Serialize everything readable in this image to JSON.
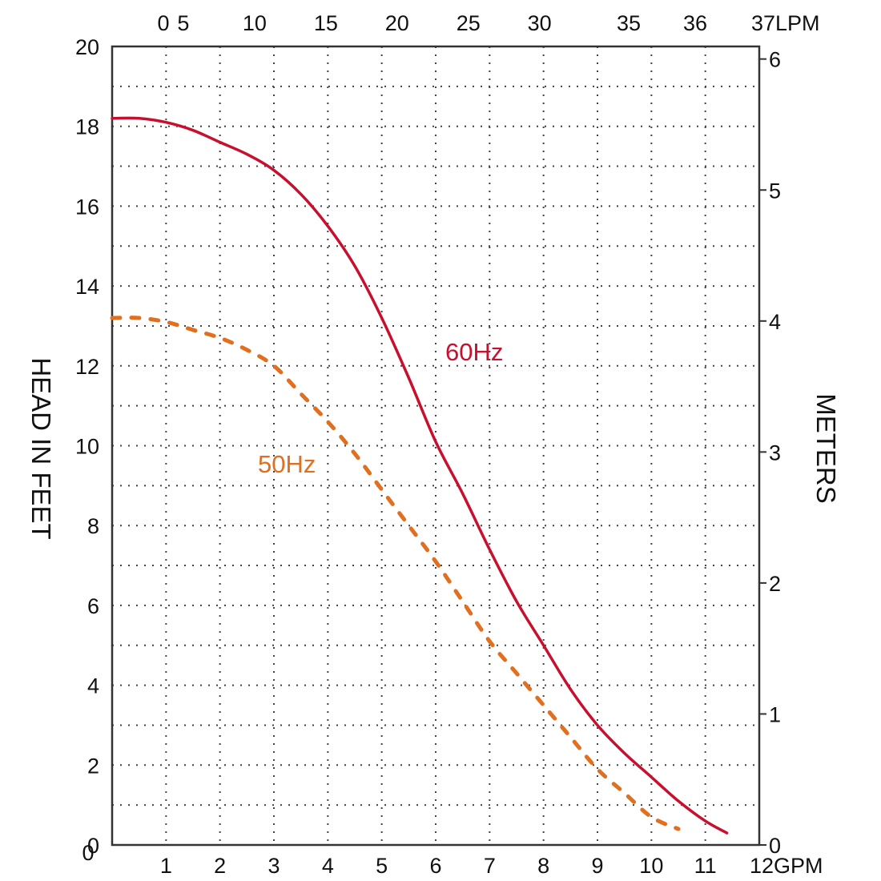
{
  "chart_data": {
    "type": "line",
    "left_axis": {
      "label": "HEAD IN FEET",
      "ticks": [
        "0",
        "2",
        "4",
        "6",
        "8",
        "10",
        "12",
        "14",
        "16",
        "18",
        "20"
      ],
      "range": [
        0,
        20
      ]
    },
    "right_axis": {
      "label": "METERS",
      "ticks": [
        "0",
        "1",
        "2",
        "3",
        "4",
        "5",
        "6"
      ],
      "range": [
        0,
        6
      ]
    },
    "bottom_axis": {
      "unit": "GPM",
      "ticks": [
        "1",
        "2",
        "3",
        "4",
        "5",
        "6",
        "7",
        "8",
        "9",
        "10",
        "11",
        "12GPM"
      ],
      "range": [
        0,
        12
      ]
    },
    "top_axis": {
      "unit": "LPM",
      "ticks": [
        "0",
        "5",
        "10",
        "15",
        "20",
        "25",
        "30",
        "35",
        "36",
        "37LPM"
      ]
    },
    "grid": true,
    "series": [
      {
        "name": "60Hz",
        "style": "solid",
        "color": "#c8102e",
        "x": [
          0,
          0.5,
          1,
          1.5,
          2,
          2.5,
          3,
          3.5,
          4,
          4.5,
          5,
          5.5,
          6,
          6.5,
          7,
          7.5,
          8,
          8.5,
          9,
          9.5,
          10,
          10.5,
          11,
          11.4
        ],
        "y": [
          18.2,
          18.2,
          18.1,
          17.9,
          17.6,
          17.3,
          16.9,
          16.3,
          15.5,
          14.5,
          13.2,
          11.7,
          10.1,
          8.8,
          7.4,
          6.1,
          5.0,
          3.9,
          3.0,
          2.3,
          1.7,
          1.1,
          0.6,
          0.3
        ]
      },
      {
        "name": "50Hz",
        "style": "dashed",
        "color": "#e07020",
        "x": [
          0,
          0.5,
          1,
          1.5,
          2,
          2.5,
          3,
          3.5,
          4,
          4.5,
          5,
          5.5,
          6,
          6.5,
          7,
          7.5,
          8,
          8.5,
          9,
          9.5,
          10,
          10.5
        ],
        "y": [
          13.2,
          13.2,
          13.1,
          12.9,
          12.7,
          12.4,
          12.0,
          11.3,
          10.6,
          9.8,
          8.9,
          8.0,
          7.1,
          6.1,
          5.1,
          4.3,
          3.5,
          2.7,
          1.9,
          1.3,
          0.7,
          0.4
        ]
      }
    ]
  }
}
